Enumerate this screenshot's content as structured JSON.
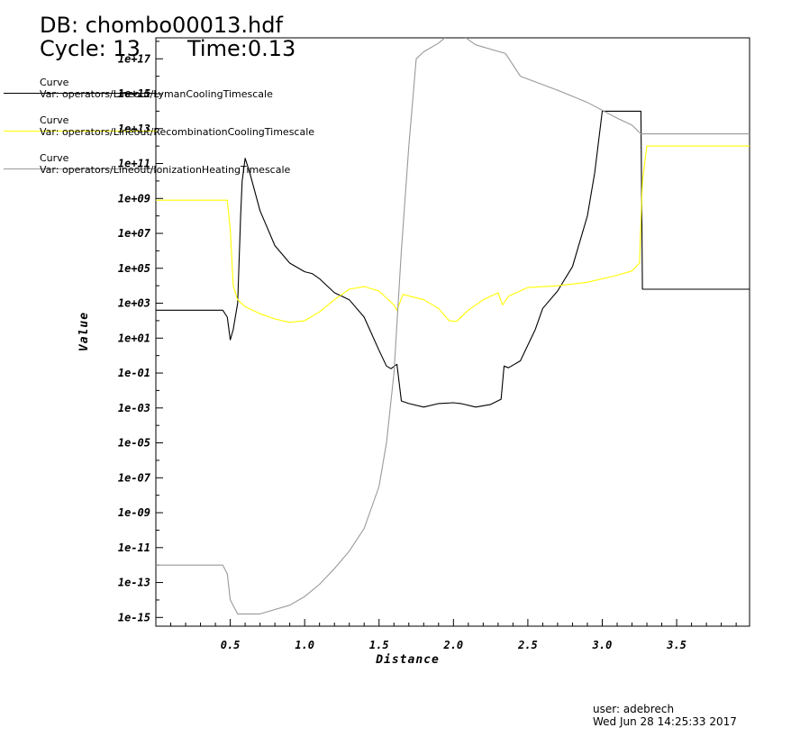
{
  "header": {
    "db_line": "DB: chombo00013.hdf",
    "cycle_line": "Cycle: 13",
    "time_line": "Time:0.13"
  },
  "footer": {
    "user": "user: adebrech",
    "date": "Wed Jun 28 14:25:33 2017"
  },
  "chart_data": {
    "type": "line",
    "title": "",
    "xlabel": "Distance",
    "ylabel": "Value",
    "xlim": [
      0,
      3.99
    ],
    "y_scale": "log",
    "ylim_exp": [
      -15.5,
      18.2
    ],
    "grid": false,
    "legend_placement": "top-left",
    "x_ticks": [
      "0.5",
      "1.0",
      "1.5",
      "2.0",
      "2.5",
      "3.0",
      "3.5"
    ],
    "x_tick_values": [
      0.5,
      1.0,
      1.5,
      2.0,
      2.5,
      3.0,
      3.5
    ],
    "y_ticks": [
      "1e-15",
      "1e-13",
      "1e-11",
      "1e-09",
      "1e-07",
      "1e-05",
      "1e-03",
      "1e-01",
      "1e+01",
      "1e+03",
      "1e+05",
      "1e+07",
      "1e+09",
      "1e+11",
      "1e+13",
      "1e+15",
      "1e+17"
    ],
    "y_tick_exps": [
      -15,
      -13,
      -11,
      -9,
      -7,
      -5,
      -3,
      -1,
      1,
      3,
      5,
      7,
      9,
      11,
      13,
      15,
      17
    ],
    "series": [
      {
        "legend_title": "Curve",
        "name": "Var: operators/Lineout/LymanCoolingTimescale",
        "color": "#000000",
        "points": [
          [
            0.0,
            2.6
          ],
          [
            0.45,
            2.6
          ],
          [
            0.48,
            2.2
          ],
          [
            0.5,
            0.9
          ],
          [
            0.52,
            1.5
          ],
          [
            0.55,
            3
          ],
          [
            0.57,
            8
          ],
          [
            0.58,
            10
          ],
          [
            0.6,
            11.3
          ],
          [
            0.63,
            10.5
          ],
          [
            0.7,
            8.3
          ],
          [
            0.8,
            6.3
          ],
          [
            0.9,
            5.3
          ],
          [
            1.0,
            4.8
          ],
          [
            1.05,
            4.7
          ],
          [
            1.1,
            4.4
          ],
          [
            1.2,
            3.6
          ],
          [
            1.3,
            3.2
          ],
          [
            1.4,
            2.2
          ],
          [
            1.5,
            0.3
          ],
          [
            1.55,
            -0.6
          ],
          [
            1.58,
            -0.75
          ],
          [
            1.62,
            -0.5
          ],
          [
            1.65,
            -2.6
          ],
          [
            1.7,
            -2.75
          ],
          [
            1.8,
            -2.95
          ],
          [
            1.9,
            -2.75
          ],
          [
            2.0,
            -2.7
          ],
          [
            2.05,
            -2.75
          ],
          [
            2.15,
            -2.95
          ],
          [
            2.25,
            -2.8
          ],
          [
            2.32,
            -2.5
          ],
          [
            2.34,
            -0.6
          ],
          [
            2.37,
            -0.7
          ],
          [
            2.45,
            -0.3
          ],
          [
            2.55,
            1.5
          ],
          [
            2.6,
            2.7
          ],
          [
            2.7,
            3.7
          ],
          [
            2.8,
            5.1
          ],
          [
            2.9,
            8.0
          ],
          [
            2.95,
            10.5
          ],
          [
            3.0,
            14.0
          ],
          [
            3.26,
            14.0
          ],
          [
            3.27,
            3.8
          ],
          [
            3.99,
            3.8
          ]
        ]
      },
      {
        "legend_title": "Curve",
        "name": "Var: operators/Lineout/RecombinationCoolingTimescale",
        "color": "#ffff00",
        "points": [
          [
            0.0,
            8.9
          ],
          [
            0.48,
            8.9
          ],
          [
            0.5,
            7.2
          ],
          [
            0.52,
            4.0
          ],
          [
            0.55,
            3.2
          ],
          [
            0.6,
            2.8
          ],
          [
            0.7,
            2.4
          ],
          [
            0.8,
            2.1
          ],
          [
            0.9,
            1.9
          ],
          [
            1.0,
            2.0
          ],
          [
            1.1,
            2.5
          ],
          [
            1.2,
            3.2
          ],
          [
            1.3,
            3.8
          ],
          [
            1.4,
            3.95
          ],
          [
            1.5,
            3.7
          ],
          [
            1.6,
            2.9
          ],
          [
            1.62,
            2.6
          ],
          [
            1.66,
            3.5
          ],
          [
            1.8,
            3.2
          ],
          [
            1.9,
            2.7
          ],
          [
            1.97,
            2.0
          ],
          [
            2.02,
            1.95
          ],
          [
            2.1,
            2.6
          ],
          [
            2.2,
            3.2
          ],
          [
            2.3,
            3.6
          ],
          [
            2.33,
            2.9
          ],
          [
            2.37,
            3.4
          ],
          [
            2.5,
            3.9
          ],
          [
            2.7,
            4.0
          ],
          [
            2.9,
            4.2
          ],
          [
            3.1,
            4.6
          ],
          [
            3.2,
            4.85
          ],
          [
            3.25,
            5.3
          ],
          [
            3.27,
            10.0
          ],
          [
            3.3,
            12.0
          ],
          [
            3.99,
            12.0
          ]
        ]
      },
      {
        "legend_title": "Curve",
        "name": "Var: operators/Lineout/IonizationHeatingTimescale",
        "color": "#999999",
        "points": [
          [
            0.0,
            -12.0
          ],
          [
            0.45,
            -12.0
          ],
          [
            0.48,
            -12.5
          ],
          [
            0.5,
            -14.0
          ],
          [
            0.55,
            -14.8
          ],
          [
            0.7,
            -14.8
          ],
          [
            0.9,
            -14.3
          ],
          [
            1.0,
            -13.8
          ],
          [
            1.1,
            -13.1
          ],
          [
            1.2,
            -12.2
          ],
          [
            1.3,
            -11.2
          ],
          [
            1.4,
            -9.9
          ],
          [
            1.5,
            -7.5
          ],
          [
            1.55,
            -5.0
          ],
          [
            1.6,
            -1.0
          ],
          [
            1.65,
            6.0
          ],
          [
            1.7,
            12.0
          ],
          [
            1.75,
            17.0
          ],
          [
            1.8,
            17.4
          ],
          [
            1.9,
            17.9
          ],
          [
            1.97,
            18.4
          ],
          [
            2.05,
            18.4
          ],
          [
            2.15,
            17.8
          ],
          [
            2.35,
            17.3
          ],
          [
            2.45,
            16.0
          ],
          [
            2.7,
            15.2
          ],
          [
            2.9,
            14.5
          ],
          [
            3.1,
            13.6
          ],
          [
            3.2,
            13.2
          ],
          [
            3.26,
            12.7
          ],
          [
            3.99,
            12.7
          ]
        ]
      }
    ]
  }
}
